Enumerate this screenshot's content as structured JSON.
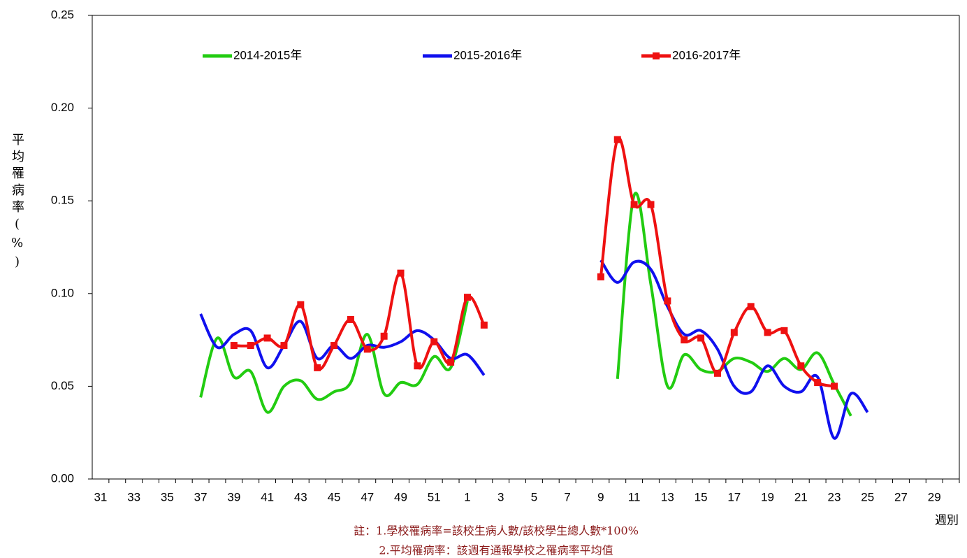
{
  "chart_data": {
    "type": "line",
    "y_label": "平均罹病率(%)",
    "x_label": "週別",
    "notes": [
      "註：1.學校罹病率=該校生病人數/該校學生總人數*100%",
      "2.平均罹病率：該週有通報學校之罹病率平均值"
    ],
    "categories": [
      "31",
      null,
      "33",
      null,
      "35",
      null,
      "37",
      null,
      "39",
      null,
      "41",
      null,
      "43",
      null,
      "45",
      null,
      "47",
      null,
      "49",
      null,
      "51",
      null,
      "1",
      null,
      "3",
      null,
      "5",
      null,
      "7",
      null,
      "9",
      null,
      "11",
      null,
      "13",
      null,
      "15",
      null,
      "17",
      null,
      "19",
      null,
      "21",
      null,
      "23",
      null,
      "25",
      null,
      "27",
      null,
      "29",
      null
    ],
    "ylim": [
      0,
      0.25
    ],
    "yticks": [
      {
        "value": 0,
        "label": "0.00"
      },
      {
        "value": 0.05,
        "label": "0.05"
      },
      {
        "value": 0.1,
        "label": "0.10"
      },
      {
        "value": 0.15,
        "label": "0.15"
      },
      {
        "value": 0.2,
        "label": "0.20"
      },
      {
        "value": 0.25,
        "label": "0.25"
      }
    ],
    "grid": false,
    "series": [
      {
        "name": "2014-2015年",
        "color": "#22cc11",
        "marker": false,
        "values": [
          null,
          null,
          null,
          null,
          null,
          null,
          0.044,
          0.076,
          0.055,
          0.058,
          0.036,
          0.05,
          0.053,
          0.043,
          0.047,
          0.052,
          0.078,
          0.046,
          0.052,
          0.051,
          0.066,
          0.06,
          0.096,
          null,
          null,
          null,
          null,
          null,
          null,
          null,
          null,
          0.054,
          0.153,
          0.105,
          0.05,
          0.067,
          0.059,
          0.058,
          0.065,
          0.063,
          0.058,
          0.065,
          0.059,
          0.068,
          0.051,
          0.034,
          null,
          null,
          null,
          null,
          null,
          null
        ]
      },
      {
        "name": "2015-2016年",
        "color": "#1010ee",
        "marker": false,
        "values": [
          null,
          null,
          null,
          null,
          null,
          null,
          0.089,
          0.071,
          0.078,
          0.08,
          0.06,
          0.072,
          0.085,
          0.065,
          0.072,
          0.065,
          0.072,
          0.071,
          0.074,
          0.08,
          0.075,
          0.065,
          0.067,
          0.056,
          null,
          null,
          null,
          null,
          null,
          null,
          0.118,
          0.106,
          0.117,
          0.113,
          0.093,
          0.078,
          0.08,
          0.07,
          0.05,
          0.047,
          0.061,
          0.05,
          0.047,
          0.055,
          0.022,
          0.046,
          0.036,
          null,
          null,
          null,
          null,
          null
        ]
      },
      {
        "name": "2016-2017年",
        "color": "#ee1111",
        "marker": true,
        "values": [
          null,
          null,
          null,
          null,
          null,
          null,
          null,
          null,
          0.072,
          0.072,
          0.076,
          0.072,
          0.094,
          0.06,
          0.072,
          0.086,
          0.07,
          0.077,
          0.111,
          0.061,
          0.074,
          0.063,
          0.098,
          0.083,
          null,
          null,
          null,
          null,
          null,
          null,
          0.109,
          0.183,
          0.148,
          0.148,
          0.096,
          0.075,
          0.076,
          0.057,
          0.079,
          0.093,
          0.079,
          0.08,
          0.061,
          0.052,
          0.05,
          null,
          null,
          null,
          null,
          null,
          null,
          null
        ]
      }
    ]
  }
}
